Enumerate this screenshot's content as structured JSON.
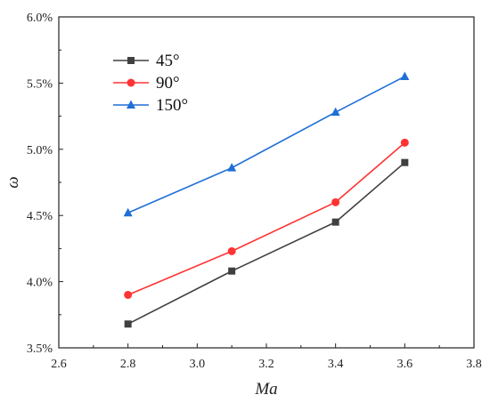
{
  "chart_data": {
    "type": "line",
    "xlabel": "Ma",
    "ylabel": "ω",
    "xlim": [
      2.6,
      3.8
    ],
    "ylim": [
      3.5,
      6.0
    ],
    "xticks": [
      "2.6",
      "2.8",
      "3.0",
      "3.2",
      "3.4",
      "3.6",
      "3.8"
    ],
    "yticks": [
      "3.5%",
      "4.0%",
      "4.5%",
      "5.0%",
      "5.5%",
      "6.0%"
    ],
    "x": [
      2.8,
      3.1,
      3.4,
      3.6
    ],
    "series": [
      {
        "name": "45°",
        "color": "#404040",
        "marker": "square",
        "values": [
          3.68,
          4.08,
          4.45,
          4.9
        ]
      },
      {
        "name": "90°",
        "color": "#ff3333",
        "marker": "circle",
        "values": [
          3.9,
          4.23,
          4.6,
          5.05
        ]
      },
      {
        "name": "150°",
        "color": "#1f6fd6",
        "marker": "triangle",
        "values": [
          4.52,
          4.86,
          5.28,
          5.55
        ]
      }
    ],
    "legend_position": "top-left",
    "grid": false
  }
}
